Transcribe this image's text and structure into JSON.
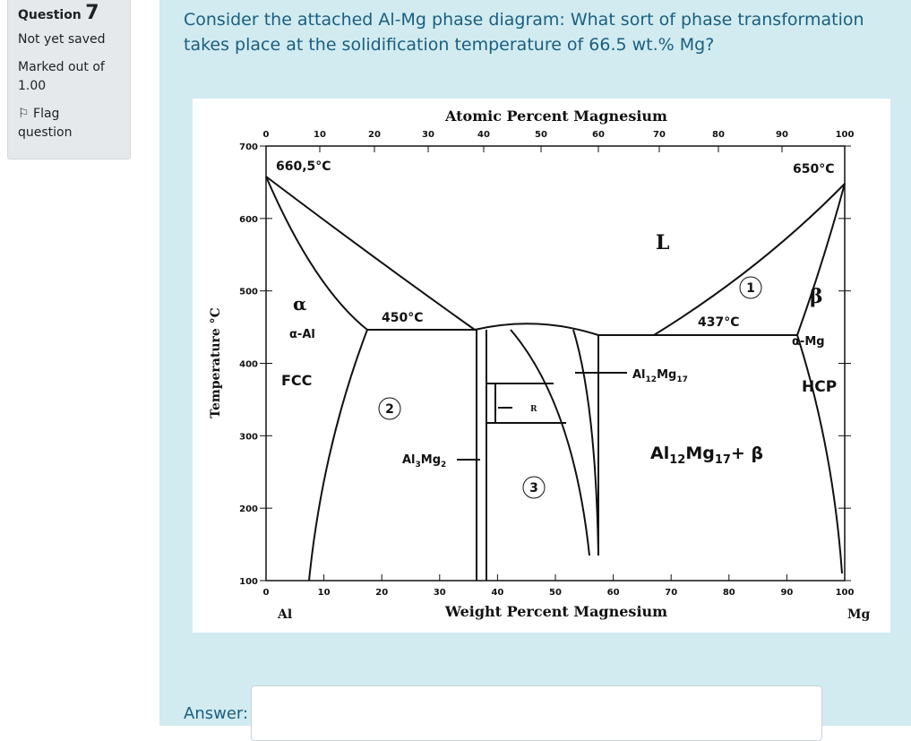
{
  "question": {
    "label": "Question",
    "number": "7",
    "status": "Not yet saved",
    "marks": "Marked out of 1.00",
    "flag": "Flag question"
  },
  "text": "Consider the attached Al-Mg phase diagram: What sort of phase transformation takes place at the solidification temperature of 66.5 wt.% Mg?",
  "diagram": {
    "top_axis_title": "Atomic Percent Magnesium",
    "bottom_axis_title": "Weight Percent Magnesium",
    "y_axis_title": "Temperature °C",
    "top_ticks": [
      "0",
      "10",
      "20",
      "30",
      "40",
      "50",
      "60",
      "70",
      "80",
      "90",
      "100"
    ],
    "bottom_ticks": [
      "0",
      "10",
      "20",
      "30",
      "40",
      "50",
      "60",
      "70",
      "80",
      "90",
      "100"
    ],
    "y_ticks": [
      "700",
      "600",
      "500",
      "400",
      "300",
      "200",
      "100"
    ],
    "left_element": "Al",
    "right_element": "Mg",
    "labels": {
      "al_melt": "660,5°C",
      "mg_melt": "650°C",
      "liquid": "L",
      "alpha": "α",
      "alpha_al": "α-Al",
      "fcc": "FCC",
      "t_left": "450°C",
      "t_right": "437°C",
      "beta": "β",
      "alpha_mg": "α-Mg",
      "hcp": "HCP",
      "r": "R",
      "marker_1": "1",
      "marker_2": "2",
      "marker_3": "3"
    },
    "al12mg17": [
      "Al",
      "12",
      "Mg",
      "17"
    ],
    "al12mg17_beta": [
      "Al",
      "12",
      "Mg",
      "17",
      "+ β"
    ],
    "al3mg2": [
      "Al",
      "3",
      "Mg",
      "2"
    ]
  },
  "answer_label": "Answer:"
}
